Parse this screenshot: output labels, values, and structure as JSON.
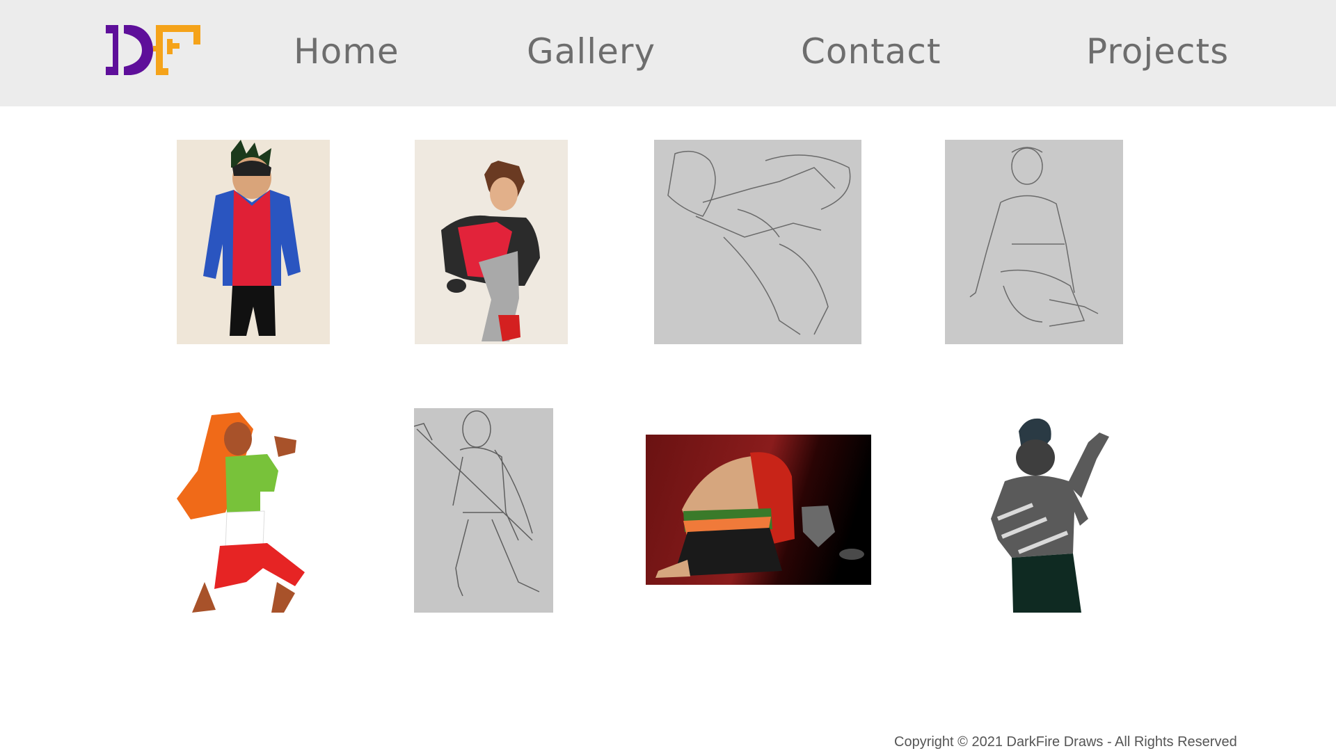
{
  "header": {
    "logo_alt": "DF",
    "colors": {
      "purple": "#5e0f9a",
      "orange": "#f5a31a",
      "background": "#ececec",
      "nav_text": "#6d6d6d"
    },
    "nav": [
      {
        "label": "Home"
      },
      {
        "label": "Gallery"
      },
      {
        "label": "Contact"
      },
      {
        "label": "Projects"
      }
    ]
  },
  "gallery": {
    "items": [
      {
        "subject": "character-blue-jacket-red-hoodie",
        "style": "colored pencil"
      },
      {
        "subject": "character-sitting-red-shirt",
        "style": "colored pencil"
      },
      {
        "subject": "pencil-sketch-reclining-figure",
        "style": "pencil"
      },
      {
        "subject": "pencil-sketch-seated-figure",
        "style": "pencil"
      },
      {
        "subject": "character-orange-hair-green-shirt",
        "style": "colored marker"
      },
      {
        "subject": "pencil-sketch-figure-with-spear",
        "style": "pencil"
      },
      {
        "subject": "digital-kneeling-red-hair",
        "style": "digital"
      },
      {
        "subject": "digital-grey-werewolf",
        "style": "digital"
      }
    ]
  },
  "footer": {
    "copyright": "Copyright © 2021 DarkFire Draws - All Rights Reserved"
  }
}
